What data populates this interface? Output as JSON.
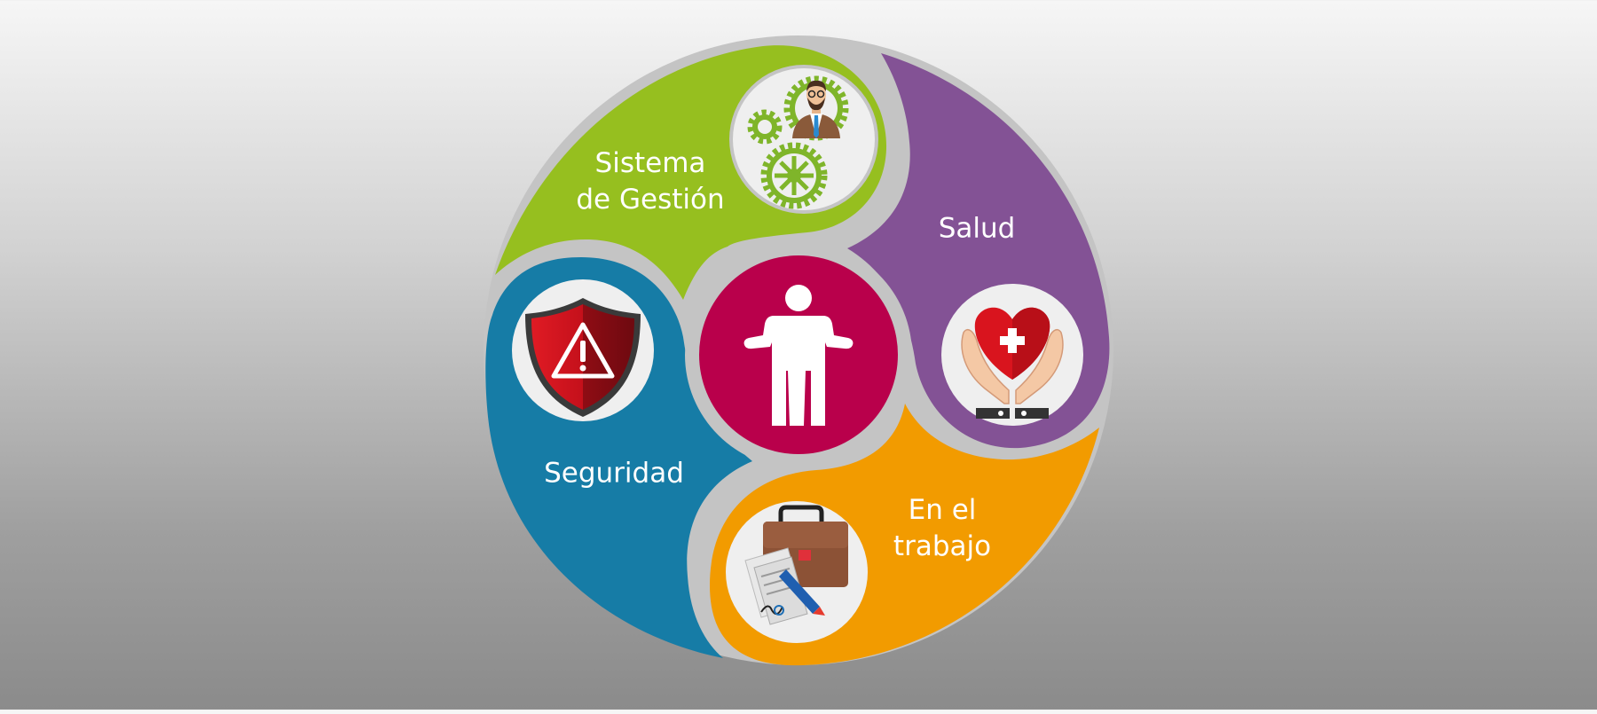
{
  "diagram": {
    "segments": [
      {
        "id": "sistema",
        "lines": [
          "Sistema",
          "de Gestión"
        ],
        "color": "#96bf1f",
        "icon": "businessman-gears-icon"
      },
      {
        "id": "salud",
        "lines": [
          "Salud"
        ],
        "color": "#835295",
        "icon": "heart-hands-icon"
      },
      {
        "id": "trabajo",
        "lines": [
          "En el",
          "trabajo"
        ],
        "color": "#f29b00",
        "icon": "briefcase-document-icon"
      },
      {
        "id": "seguridad",
        "lines": [
          "Seguridad"
        ],
        "color": "#167ca6",
        "icon": "warning-shield-icon"
      }
    ],
    "center": {
      "color": "#b9004b",
      "icon": "person-icon"
    },
    "gap_color": "#c4c4c4",
    "icon_circle_color": "#efefef"
  }
}
